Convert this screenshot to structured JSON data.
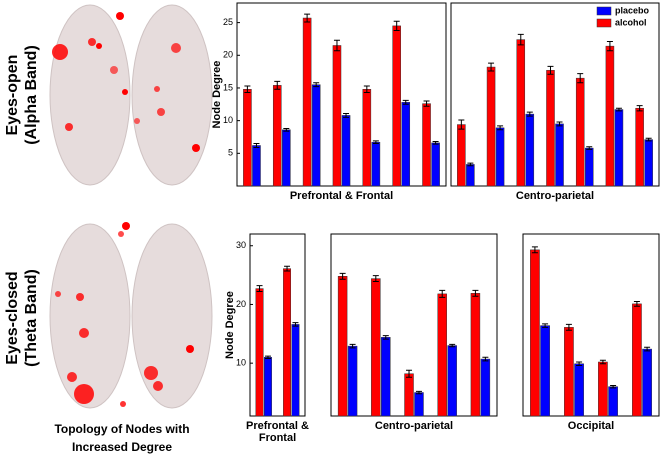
{
  "row_labels": [
    "Eyes-open",
    "(Alpha Band)",
    "Eyes-closed",
    "(Theta Band)"
  ],
  "caption": [
    "Topology of Nodes with",
    "Increased Degree"
  ],
  "chart_data": [
    {
      "type": "bar",
      "xlabel": "Prefrontal & Frontal",
      "ylabel": "Node Degree",
      "ylim": [
        0,
        28
      ],
      "yticks": [
        5,
        10,
        15,
        20,
        25
      ],
      "series": [
        {
          "color": "#ff0000",
          "values": [
            14.8,
            15.4,
            25.7,
            21.5,
            14.8,
            24.5,
            12.6
          ],
          "errors": [
            0.5,
            0.6,
            0.6,
            0.8,
            0.5,
            0.7,
            0.4
          ]
        },
        {
          "color": "#0000ff",
          "values": [
            6.2,
            8.6,
            15.5,
            10.8,
            6.7,
            12.8,
            6.6
          ],
          "errors": [
            0.3,
            0.2,
            0.3,
            0.3,
            0.2,
            0.3,
            0.2
          ]
        }
      ]
    },
    {
      "type": "bar",
      "xlabel": "Centro-parietal",
      "ylim": [
        0,
        28
      ],
      "legend": "upper right",
      "series": [
        {
          "name": "alcohol",
          "color": "#ff0000",
          "values": [
            9.4,
            18.2,
            22.4,
            17.7,
            16.5,
            21.4,
            11.9
          ],
          "errors": [
            0.7,
            0.6,
            0.8,
            0.6,
            0.7,
            0.7,
            0.4
          ]
        },
        {
          "name": "placebo",
          "color": "#0000ff",
          "values": [
            3.3,
            8.9,
            11.0,
            9.5,
            5.8,
            11.7,
            7.1
          ],
          "errors": [
            0.2,
            0.3,
            0.3,
            0.3,
            0.2,
            0.2,
            0.2
          ]
        }
      ]
    },
    {
      "type": "bar",
      "xlabel": "Prefrontal & Frontal",
      "ylabel": "Node Degree",
      "ylim": [
        1,
        32
      ],
      "yticks": [
        10,
        20,
        30
      ],
      "series": [
        {
          "color": "#ff0000",
          "values": [
            22.7,
            26.1
          ],
          "errors": [
            0.5,
            0.4
          ]
        },
        {
          "color": "#0000ff",
          "values": [
            11.0,
            16.6
          ],
          "errors": [
            0.2,
            0.3
          ]
        }
      ]
    },
    {
      "type": "bar",
      "xlabel": "Centro-parietal",
      "ylim": [
        1,
        32
      ],
      "series": [
        {
          "color": "#ff0000",
          "values": [
            24.8,
            24.4,
            8.2,
            21.8,
            21.9
          ],
          "errors": [
            0.5,
            0.5,
            0.6,
            0.6,
            0.5
          ]
        },
        {
          "color": "#0000ff",
          "values": [
            12.9,
            14.4,
            5.0,
            13.0,
            10.7
          ],
          "errors": [
            0.3,
            0.3,
            0.2,
            0.2,
            0.3
          ]
        }
      ]
    },
    {
      "type": "bar",
      "xlabel": "Occipital",
      "ylim": [
        1,
        32
      ],
      "series": [
        {
          "color": "#ff0000",
          "values": [
            29.3,
            16.1,
            10.2,
            20.1
          ],
          "errors": [
            0.5,
            0.5,
            0.3,
            0.4
          ]
        },
        {
          "color": "#0000ff",
          "values": [
            16.4,
            9.9,
            6.0,
            12.4
          ],
          "errors": [
            0.3,
            0.3,
            0.2,
            0.3
          ]
        }
      ]
    }
  ]
}
